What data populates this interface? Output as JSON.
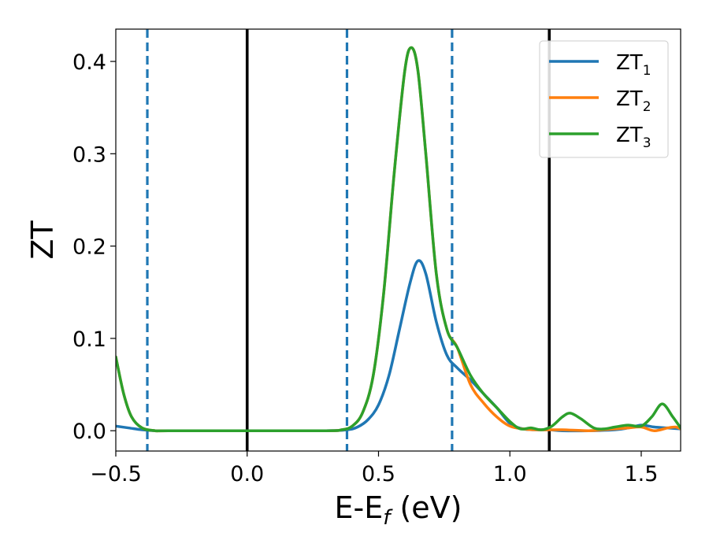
{
  "chart_data": {
    "type": "line",
    "xlabel": "E-E",
    "xlabel_sub": "f",
    "xlabel_unit": " (eV)",
    "ylabel": "ZT",
    "xlim": [
      -0.5,
      1.65
    ],
    "ylim": [
      -0.022,
      0.435
    ],
    "xticks": [
      -0.5,
      0.0,
      0.5,
      1.0,
      1.5
    ],
    "xtick_labels": [
      "−0.5",
      "0.0",
      "0.5",
      "1.0",
      "1.5"
    ],
    "yticks": [
      0.0,
      0.1,
      0.2,
      0.3,
      0.4
    ],
    "ytick_labels": [
      "0.0",
      "0.1",
      "0.2",
      "0.3",
      "0.4"
    ],
    "grid": false,
    "legend_position": "top-right",
    "vlines": [
      {
        "x": -0.38,
        "style": "dashed",
        "color": "#1f77b4"
      },
      {
        "x": 0.0,
        "style": "solid",
        "color": "#000000"
      },
      {
        "x": 0.38,
        "style": "dashed",
        "color": "#1f77b4"
      },
      {
        "x": 0.78,
        "style": "dashed",
        "color": "#1f77b4"
      },
      {
        "x": 1.15,
        "style": "solid",
        "color": "#000000"
      }
    ],
    "series": [
      {
        "name": "ZT",
        "name_sub": "1",
        "color": "#1f77b4",
        "x": [
          -0.5,
          -0.45,
          -0.4,
          -0.35,
          -0.3,
          0.0,
          0.3,
          0.38,
          0.42,
          0.46,
          0.5,
          0.54,
          0.58,
          0.62,
          0.65,
          0.68,
          0.72,
          0.76,
          0.8,
          0.85,
          0.9,
          0.95,
          1.0,
          1.05,
          1.1,
          1.15,
          1.2,
          1.3,
          1.4,
          1.45,
          1.5,
          1.55,
          1.6,
          1.65
        ],
        "y": [
          0.005,
          0.003,
          0.001,
          0.0,
          0.0,
          0.0,
          0.0,
          0.001,
          0.004,
          0.012,
          0.028,
          0.06,
          0.11,
          0.16,
          0.184,
          0.17,
          0.118,
          0.082,
          0.068,
          0.055,
          0.04,
          0.025,
          0.008,
          0.002,
          0.001,
          0.001,
          0.0,
          0.0,
          0.001,
          0.003,
          0.006,
          0.004,
          0.003,
          0.002
        ]
      },
      {
        "name": "ZT",
        "name_sub": "2",
        "color": "#ff7f0e",
        "x": [
          -0.5,
          -0.47,
          -0.44,
          -0.4,
          -0.35,
          -0.3,
          0.0,
          0.3,
          0.36,
          0.4,
          0.44,
          0.48,
          0.52,
          0.56,
          0.6,
          0.625,
          0.65,
          0.68,
          0.72,
          0.76,
          0.8,
          0.85,
          0.9,
          0.95,
          1.0,
          1.05,
          1.1,
          1.15,
          1.2,
          1.3,
          1.35,
          1.4,
          1.45,
          1.5,
          1.55,
          1.6,
          1.63,
          1.65
        ],
        "y": [
          0.08,
          0.04,
          0.015,
          0.003,
          0.0,
          0.0,
          0.0,
          0.0,
          0.001,
          0.005,
          0.02,
          0.06,
          0.15,
          0.28,
          0.39,
          0.415,
          0.39,
          0.3,
          0.17,
          0.11,
          0.09,
          0.05,
          0.03,
          0.015,
          0.005,
          0.002,
          0.001,
          0.001,
          0.001,
          0.0,
          0.001,
          0.002,
          0.003,
          0.004,
          0.0,
          0.003,
          0.004,
          0.002
        ]
      },
      {
        "name": "ZT",
        "name_sub": "3",
        "color": "#2ca02c",
        "x": [
          -0.5,
          -0.47,
          -0.44,
          -0.4,
          -0.35,
          -0.3,
          0.0,
          0.3,
          0.36,
          0.4,
          0.44,
          0.48,
          0.52,
          0.56,
          0.6,
          0.625,
          0.65,
          0.68,
          0.72,
          0.76,
          0.8,
          0.85,
          0.9,
          0.95,
          1.0,
          1.04,
          1.08,
          1.12,
          1.16,
          1.2,
          1.23,
          1.27,
          1.32,
          1.36,
          1.4,
          1.45,
          1.5,
          1.54,
          1.58,
          1.62,
          1.65
        ],
        "y": [
          0.08,
          0.04,
          0.015,
          0.003,
          0.0,
          0.0,
          0.0,
          0.0,
          0.001,
          0.005,
          0.02,
          0.06,
          0.15,
          0.28,
          0.39,
          0.415,
          0.39,
          0.3,
          0.17,
          0.11,
          0.09,
          0.06,
          0.04,
          0.025,
          0.01,
          0.002,
          0.003,
          0.001,
          0.005,
          0.015,
          0.019,
          0.013,
          0.003,
          0.002,
          0.004,
          0.006,
          0.005,
          0.015,
          0.029,
          0.015,
          0.003
        ]
      }
    ]
  }
}
